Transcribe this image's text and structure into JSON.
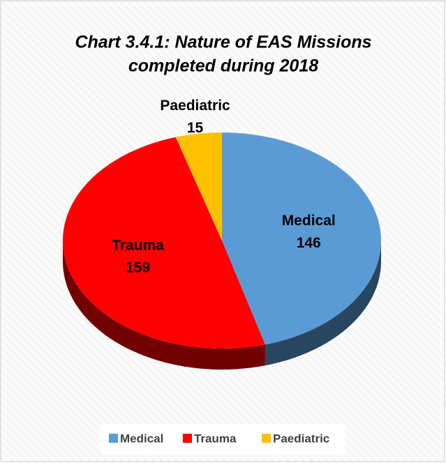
{
  "chart_data": {
    "type": "pie",
    "title": [
      "Chart 3.4.1:  Nature of EAS Missions",
      "completed during 2018"
    ],
    "categories": [
      "Medical",
      "Trauma",
      "Paediatric"
    ],
    "values": [
      146,
      159,
      15
    ],
    "colors": [
      "#5b9bd5",
      "#ff0000",
      "#ffc000"
    ],
    "legend": "bottom"
  }
}
